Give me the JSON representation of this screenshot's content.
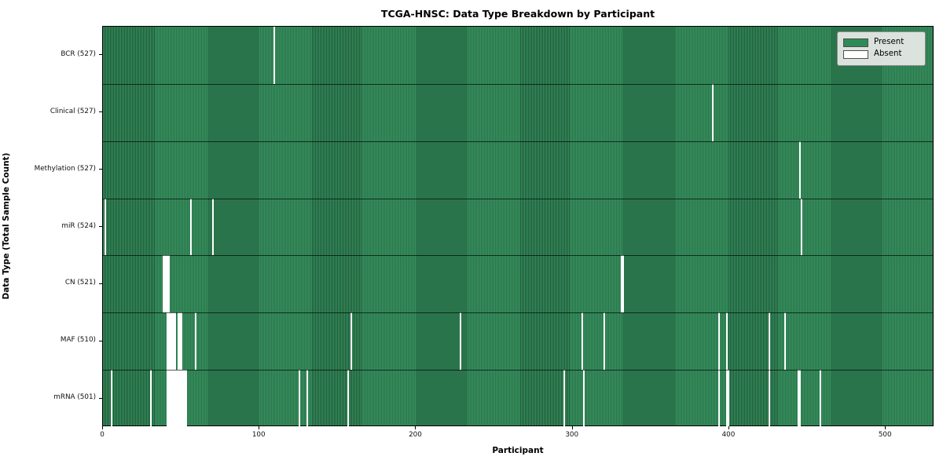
{
  "title": "TCGA-HNSC: Data Type Breakdown by Participant",
  "xlabel": "Participant",
  "ylabel": "Data Type (Total Sample Count)",
  "legend": {
    "present_label": "Present",
    "absent_label": "Absent"
  },
  "colors": {
    "present": "#2e8b57",
    "present_stripe_light": "#38915f",
    "present_stripe_dark": "#1d5737",
    "absent": "#ffffff",
    "row_divider": "rgba(0,0,0,0.65)",
    "axis": "#000000"
  },
  "chart_data": {
    "type": "heatmap",
    "title": "TCGA-HNSC: Data Type Breakdown by Participant",
    "xlabel": "Participant",
    "ylabel": "Data Type (Total Sample Count)",
    "x_ticks": [
      0,
      100,
      200,
      300,
      400,
      500
    ],
    "xlim": [
      0,
      531
    ],
    "n_participants": 528,
    "grid": false,
    "legend_position": "upper right",
    "legend": [
      {
        "label": "Present",
        "color": "#2e8b57"
      },
      {
        "label": "Absent",
        "color": "#ffffff"
      }
    ],
    "rows": [
      {
        "label": "BCR (527)",
        "name": "bcr",
        "total": 527,
        "absent": [
          109
        ]
      },
      {
        "label": "Clinical (527)",
        "name": "clinical",
        "total": 527,
        "absent": [
          389
        ]
      },
      {
        "label": "Methylation (527)",
        "name": "methylation",
        "total": 527,
        "absent": [
          445
        ]
      },
      {
        "label": "miR (524)",
        "name": "mir",
        "total": 524,
        "absent": [
          1,
          56,
          70,
          446
        ]
      },
      {
        "label": "CN (521)",
        "name": "cn",
        "total": 521,
        "absent": [
          38,
          39,
          40,
          41,
          42,
          331,
          332
        ]
      },
      {
        "label": "MAF (510)",
        "name": "maf",
        "total": 510,
        "absent": [
          41,
          42,
          43,
          44,
          45,
          46,
          48,
          49,
          50,
          59,
          158,
          228,
          306,
          320,
          393,
          398,
          425,
          435
        ]
      },
      {
        "label": "mRNA (501)",
        "name": "mrna",
        "total": 501,
        "absent": [
          5,
          30,
          41,
          42,
          43,
          44,
          45,
          46,
          47,
          48,
          49,
          50,
          51,
          52,
          53,
          125,
          130,
          156,
          294,
          307,
          393,
          398,
          399,
          425,
          444,
          445,
          458
        ]
      }
    ]
  }
}
